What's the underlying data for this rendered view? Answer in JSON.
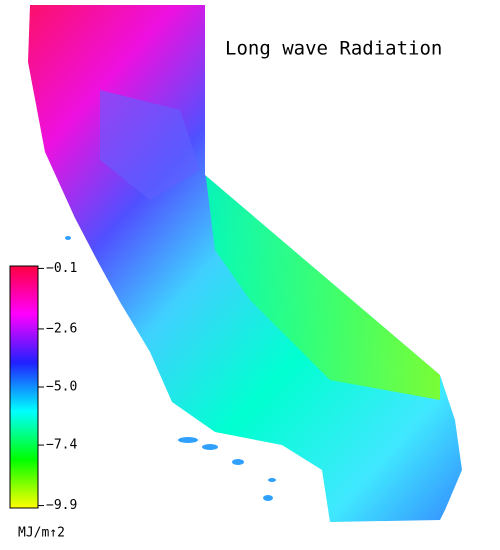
{
  "title": "Long wave Radiation",
  "colorbar": {
    "unit": "MJ/m↑2",
    "lim": [
      -10,
      0
    ],
    "colors": [
      "#ffff00",
      "#00ff00",
      "#00ffff",
      "#2020ff",
      "#ff00ff",
      "#ff0040"
    ],
    "ticks": [
      {
        "value": -0.1,
        "label": "−0.1"
      },
      {
        "value": -2.6,
        "label": "−2.6"
      },
      {
        "value": -5.0,
        "label": "−5.0"
      },
      {
        "value": -7.4,
        "label": "−7.4"
      },
      {
        "value": -9.9,
        "label": "−9.9"
      }
    ]
  }
}
